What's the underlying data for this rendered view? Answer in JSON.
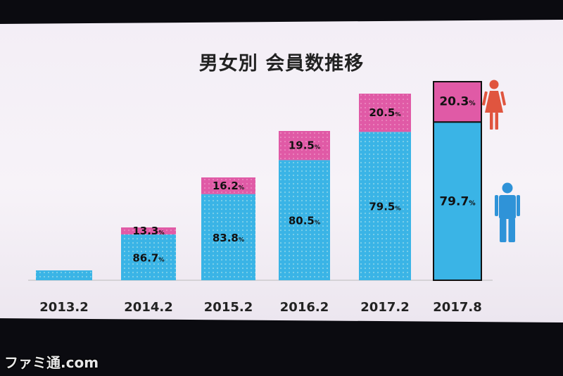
{
  "chart_data": {
    "type": "bar",
    "title": "男女別 会員数推移",
    "categories": [
      "2013.2",
      "2014.2",
      "2015.2",
      "2016.2",
      "2017.2",
      "2017.8"
    ],
    "series": [
      {
        "name": "male",
        "values": [
          null,
          86.7,
          83.8,
          80.5,
          79.5,
          79.7
        ],
        "labels": [
          "",
          "86.7",
          "83.8",
          "80.5",
          "79.5",
          "79.7"
        ]
      },
      {
        "name": "female",
        "values": [
          null,
          13.3,
          16.2,
          19.5,
          20.5,
          20.3
        ],
        "labels": [
          "",
          "13.3",
          "16.2",
          "19.5",
          "20.5",
          "20.3"
        ]
      }
    ],
    "percent_symbol": "%",
    "stacked": true,
    "highlighted_category": "2017.8",
    "grid": false,
    "colors": {
      "male": "#3ab4e6",
      "female": "#e05aa6",
      "outline": "#111111"
    }
  },
  "icons": {
    "female": "female-figure-icon",
    "male": "male-figure-icon"
  },
  "watermark": "ファミ通.com"
}
